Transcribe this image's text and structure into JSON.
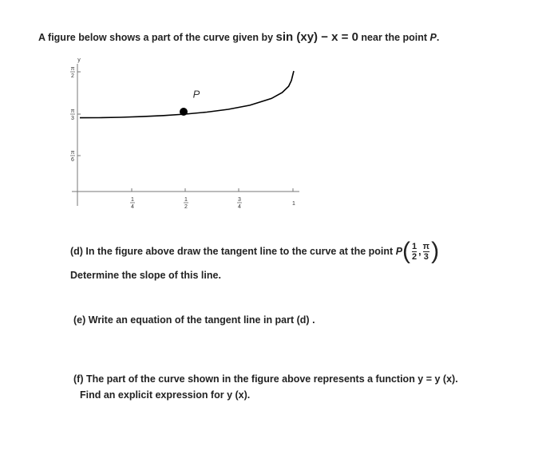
{
  "header": {
    "intro": "A figure below shows a part of the curve given by",
    "equation": "sin (xy) − x = 0",
    "near": "near the point",
    "point": "P",
    "end": "."
  },
  "figure": {
    "y_axis_label": "y",
    "point_label": "P",
    "y_ticks": [
      {
        "num": "π",
        "den": "2"
      },
      {
        "num": "π",
        "den": "3"
      },
      {
        "num": "π",
        "den": "6"
      }
    ],
    "x_ticks": [
      {
        "num": "1",
        "den": "4"
      },
      {
        "num": "1",
        "den": "2"
      },
      {
        "num": "3",
        "den": "4"
      },
      "1"
    ]
  },
  "part_d": {
    "text": "(d) In the figure above draw the tangent line to the curve at the point",
    "point": "P",
    "x_num": "1",
    "x_den": "2",
    "y_num": "π",
    "y_den": "3",
    "slope": "Determine the slope of this line."
  },
  "part_e": {
    "text": "(e) Write an equation of the tangent line in part (d) ."
  },
  "part_f": {
    "line1": "(f) The part of the curve shown in the figure above represents a function y = y (x).",
    "line2": "Find an explicit expression for y (x)."
  }
}
